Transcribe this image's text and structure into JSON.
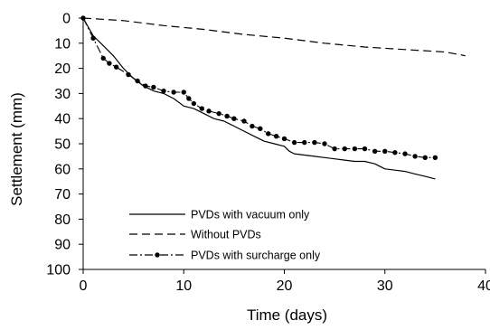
{
  "chart_data": {
    "type": "line",
    "title": "",
    "xlabel": "Time (days)",
    "ylabel": "Settlement (mm)",
    "xlim": [
      0,
      40
    ],
    "ylim": [
      0,
      100
    ],
    "y_inverted": true,
    "grid": false,
    "legend_placement": "lower-center",
    "x_ticks": [
      0,
      10,
      20,
      30,
      40
    ],
    "y_ticks": [
      0,
      10,
      20,
      30,
      40,
      50,
      60,
      70,
      80,
      90,
      100
    ],
    "series": [
      {
        "name": "PVDs with vacuum only",
        "style": "solid",
        "color": "#000000",
        "x": [
          0,
          1,
          2,
          3,
          4,
          5,
          6,
          7,
          8,
          9,
          10,
          11,
          12,
          13,
          14,
          15,
          16,
          17,
          18,
          19,
          20,
          20.5,
          21,
          22,
          23,
          24,
          25,
          26,
          27,
          28,
          29,
          30,
          31,
          32,
          33,
          34,
          35
        ],
        "y": [
          0,
          7,
          11,
          15,
          20,
          24,
          27,
          29,
          30,
          32,
          35,
          36,
          38,
          40,
          41,
          43,
          45,
          47,
          49,
          50,
          51,
          53,
          54,
          54.5,
          55,
          55.5,
          56,
          56.5,
          57,
          57,
          58,
          60,
          60.5,
          61,
          62,
          63,
          64
        ]
      },
      {
        "name": "Without PVDs",
        "style": "dashed",
        "color": "#000000",
        "x": [
          0,
          4,
          8,
          12,
          16,
          20,
          24,
          28,
          32,
          36,
          38
        ],
        "y": [
          0,
          1,
          3,
          4.5,
          6.5,
          8,
          10,
          11.5,
          12.5,
          13.5,
          15
        ]
      },
      {
        "name": "PVDs with surcharge only",
        "style": "dash-dot",
        "color": "#000000",
        "markers": true,
        "x": [
          0,
          1,
          2,
          2.6,
          3.3,
          4.5,
          5.4,
          6.2,
          7,
          8,
          9,
          10,
          10.5,
          11,
          11.8,
          12.5,
          13.5,
          14.3,
          15,
          16,
          16.8,
          17.6,
          18.4,
          19.2,
          20,
          21,
          22,
          23,
          24,
          25,
          26,
          27,
          28,
          29,
          30,
          31,
          32,
          33,
          34,
          35
        ],
        "y": [
          0,
          8,
          16,
          18,
          19.5,
          22.5,
          25,
          27,
          27.5,
          29,
          29.5,
          29.5,
          32,
          34,
          36,
          37,
          38,
          39,
          40,
          41,
          43,
          44,
          46,
          47,
          48,
          49.5,
          49.5,
          49.5,
          50,
          52,
          52,
          52,
          52,
          53,
          53,
          53.5,
          54,
          55,
          55.5,
          55.5
        ]
      }
    ]
  }
}
